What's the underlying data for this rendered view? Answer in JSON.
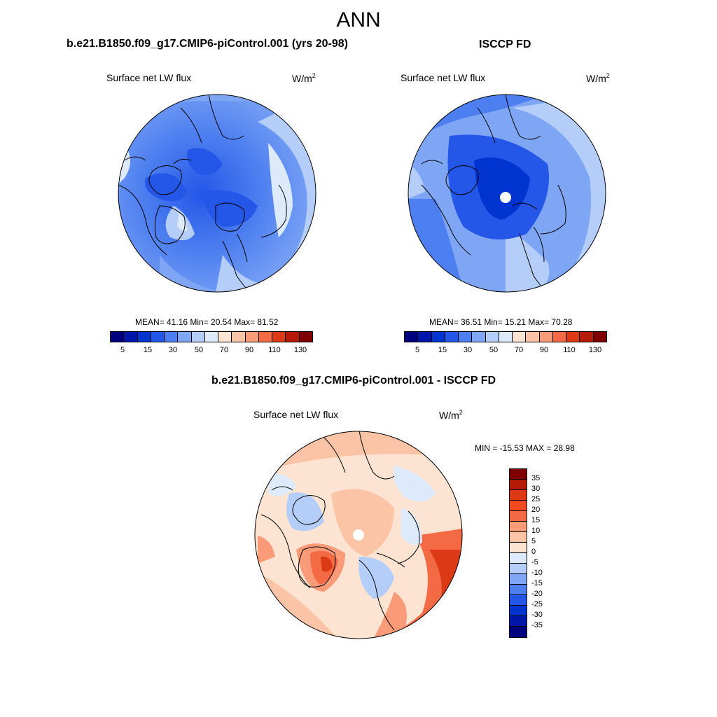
{
  "main_title": "ANN",
  "panels": [
    {
      "title": "b.e21.B1850.f09_g17.CMIP6-piControl.001 (yrs 20-98)",
      "variable": "Surface net LW flux",
      "units_base": "W/m",
      "units_exp": "2",
      "stats": "MEAN=  41.16  Min=  20.54  Max=  81.52",
      "colorbar_labels": [
        "5",
        "15",
        "30",
        "50",
        "70",
        "90",
        "110",
        "130"
      ]
    },
    {
      "title": "ISCCP FD",
      "variable": "Surface net LW flux",
      "units_base": "W/m",
      "units_exp": "2",
      "stats": "MEAN=  36.51  Min=  15.21  Max=  70.28",
      "colorbar_labels": [
        "5",
        "15",
        "30",
        "50",
        "70",
        "90",
        "110",
        "130"
      ]
    },
    {
      "title": "b.e21.B1850.f09_g17.CMIP6-piControl.001 - ISCCP FD",
      "variable": "Surface net LW flux",
      "units_base": "W/m",
      "units_exp": "2",
      "stats": "MIN = -15.53 MAX =  28.98",
      "colorbar_labels": [
        "35",
        "30",
        "25",
        "20",
        "15",
        "10",
        "5",
        "0",
        "-5",
        "-10",
        "-15",
        "-20",
        "-25",
        "-30",
        "-35"
      ]
    }
  ],
  "colors": {
    "abs_scale": [
      "#00007f",
      "#0016a8",
      "#0034d0",
      "#2456e8",
      "#4e7ff0",
      "#7ea6f5",
      "#b4cdf9",
      "#dceafb",
      "#fde4d2",
      "#fcc4a6",
      "#f99a78",
      "#f36a45",
      "#dc3a16",
      "#b51a08",
      "#7f0000"
    ],
    "diff_scale": [
      "#7f0000",
      "#b51a08",
      "#dc3a16",
      "#f04a20",
      "#f36a45",
      "#f99a78",
      "#fcc4a6",
      "#fde4d2",
      "#dceafb",
      "#b4cdf9",
      "#7ea6f5",
      "#4e7ff0",
      "#2456e8",
      "#0034d0",
      "#0016a8",
      "#00007f"
    ]
  }
}
